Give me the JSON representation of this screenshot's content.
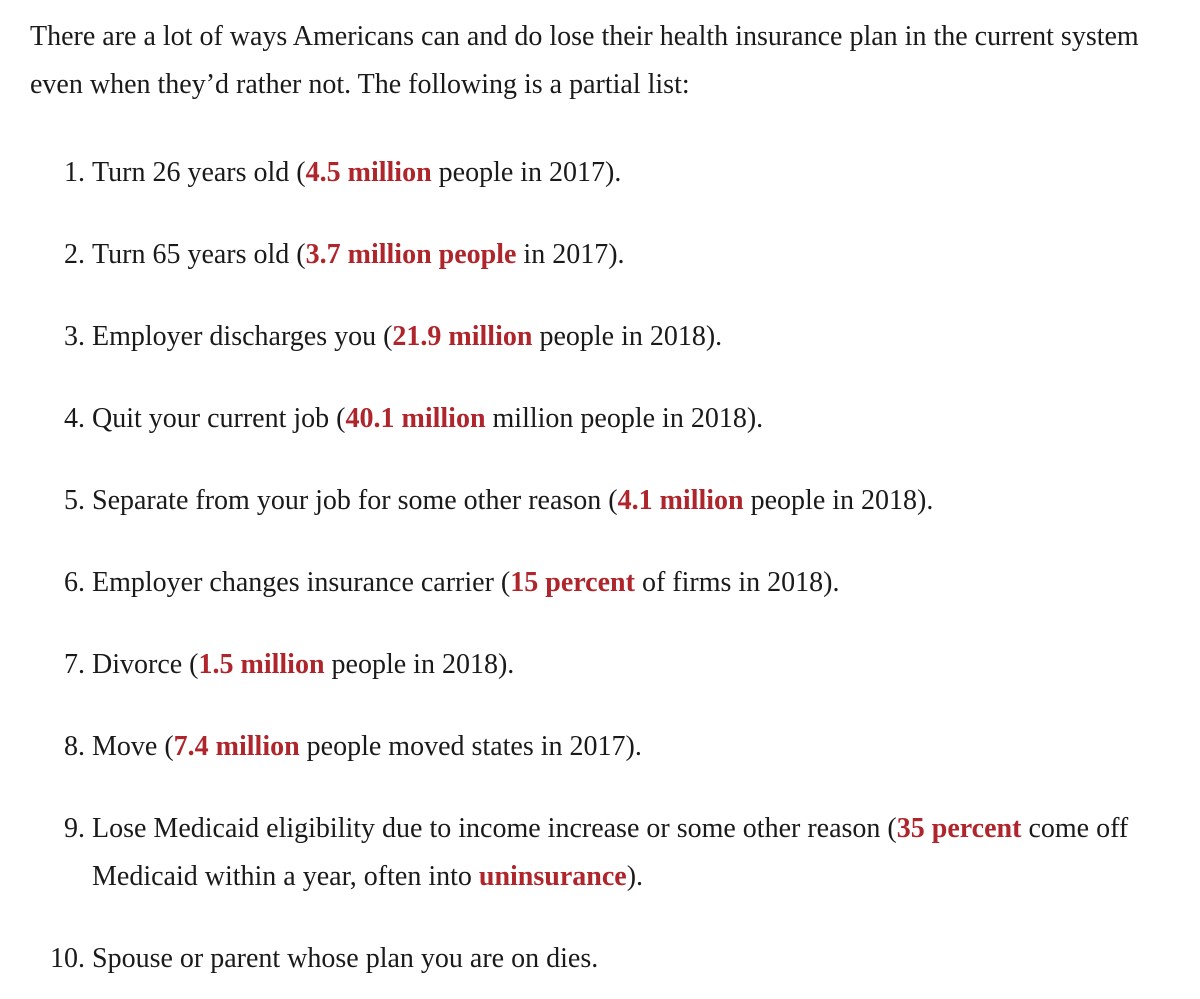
{
  "page": {
    "background": "#ffffff",
    "text_color": "#1a1a1a",
    "link_color": "#ae262c"
  },
  "article": {
    "intro": "There are a lot of ways Americans can and do lose their health insurance plan in the current system even when they’d rather not. The following is a partial list:",
    "list": {
      "items": [
        {
          "segments": [
            {
              "text": "Turn 26 years old (",
              "link": false
            },
            {
              "text": "4.5 million",
              "link": true
            },
            {
              "text": " people in 2017).",
              "link": false
            }
          ]
        },
        {
          "segments": [
            {
              "text": "Turn 65 years old (",
              "link": false
            },
            {
              "text": "3.7 million people",
              "link": true
            },
            {
              "text": " in 2017).",
              "link": false
            }
          ]
        },
        {
          "segments": [
            {
              "text": "Employer discharges you (",
              "link": false
            },
            {
              "text": "21.9 million",
              "link": true
            },
            {
              "text": " people in 2018).",
              "link": false
            }
          ]
        },
        {
          "segments": [
            {
              "text": "Quit your current job (",
              "link": false
            },
            {
              "text": "40.1 million",
              "link": true
            },
            {
              "text": " million people in 2018).",
              "link": false
            }
          ]
        },
        {
          "segments": [
            {
              "text": "Separate from your job for some other reason (",
              "link": false
            },
            {
              "text": "4.1 million",
              "link": true
            },
            {
              "text": " people in 2018).",
              "link": false
            }
          ]
        },
        {
          "segments": [
            {
              "text": "Employer changes insurance carrier (",
              "link": false
            },
            {
              "text": "15 percent",
              "link": true
            },
            {
              "text": " of firms in 2018).",
              "link": false
            }
          ]
        },
        {
          "segments": [
            {
              "text": "Divorce (",
              "link": false
            },
            {
              "text": "1.5 million",
              "link": true
            },
            {
              "text": " people in 2018).",
              "link": false
            }
          ]
        },
        {
          "segments": [
            {
              "text": "Move (",
              "link": false
            },
            {
              "text": "7.4 million",
              "link": true
            },
            {
              "text": " people moved states in 2017).",
              "link": false
            }
          ]
        },
        {
          "segments": [
            {
              "text": "Lose Medicaid eligibility due to income increase or some other reason (",
              "link": false
            },
            {
              "text": "35 percent",
              "link": true
            },
            {
              "text": " come off Medicaid within a year, often into ",
              "link": false
            },
            {
              "text": "uninsurance",
              "link": true
            },
            {
              "text": ").",
              "link": false
            }
          ]
        },
        {
          "segments": [
            {
              "text": "Spouse or parent whose plan you are on dies.",
              "link": false
            }
          ]
        }
      ]
    }
  }
}
